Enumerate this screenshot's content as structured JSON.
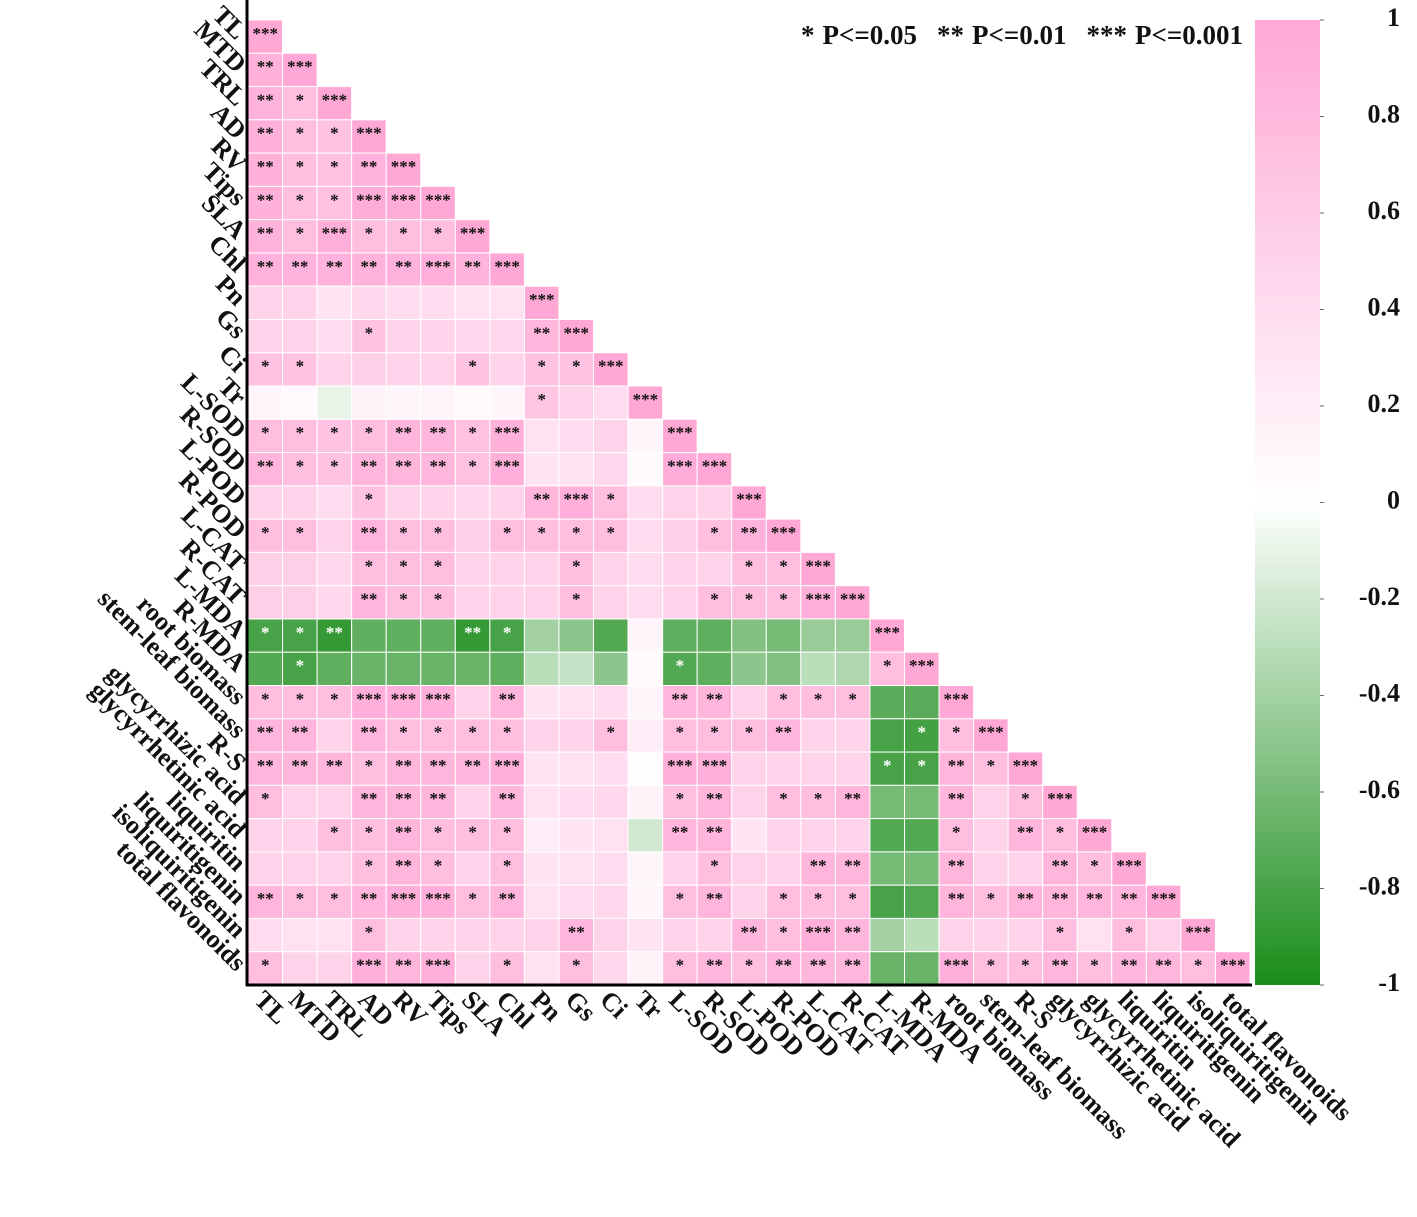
{
  "chart_data": {
    "type": "heatmap",
    "variables": [
      "TL",
      "MTD",
      "TRL",
      "AD",
      "RV",
      "Tips",
      "SLA",
      "Chl",
      "Pn",
      "Gs",
      "Ci",
      "Tr",
      "L-SOD",
      "R-SOD",
      "L-POD",
      "R-POD",
      "L-CAT",
      "R-CAT",
      "L-MDA",
      "R-MDA",
      "root biomass",
      "stem-leaf biomass",
      "R-S",
      "glycyrrhizic acid",
      "glycyrrhetinic acid",
      "liquiritin",
      "liquiritigenin",
      "isoliquiritigenin",
      "total flavonoids"
    ],
    "values": [
      [
        1
      ],
      [
        0.9,
        1
      ],
      [
        0.88,
        0.75,
        1
      ],
      [
        0.9,
        0.75,
        0.7,
        1
      ],
      [
        0.9,
        0.75,
        0.72,
        0.88,
        1
      ],
      [
        0.9,
        0.75,
        0.72,
        0.95,
        0.95,
        1
      ],
      [
        0.88,
        0.75,
        0.93,
        0.75,
        0.75,
        0.75,
        1
      ],
      [
        0.88,
        0.88,
        0.88,
        0.88,
        0.88,
        0.92,
        0.88,
        1
      ],
      [
        0.5,
        0.5,
        0.3,
        0.45,
        0.4,
        0.4,
        0.35,
        0.35,
        1
      ],
      [
        0.5,
        0.5,
        0.4,
        0.7,
        0.5,
        0.5,
        0.45,
        0.45,
        0.85,
        1
      ],
      [
        0.7,
        0.7,
        0.5,
        0.55,
        0.5,
        0.5,
        0.7,
        0.5,
        0.7,
        0.7,
        1
      ],
      [
        0.12,
        0.08,
        -0.1,
        0.15,
        0.1,
        0.12,
        0.05,
        0.1,
        0.65,
        0.5,
        0.4,
        1
      ],
      [
        0.75,
        0.75,
        0.7,
        0.75,
        0.85,
        0.85,
        0.72,
        0.9,
        0.35,
        0.4,
        0.5,
        0.1,
        1
      ],
      [
        0.85,
        0.75,
        0.7,
        0.85,
        0.85,
        0.85,
        0.72,
        0.92,
        0.3,
        0.35,
        0.45,
        0.05,
        0.95,
        1
      ],
      [
        0.5,
        0.5,
        0.4,
        0.7,
        0.5,
        0.5,
        0.45,
        0.5,
        0.85,
        0.92,
        0.75,
        0.4,
        0.5,
        0.5,
        1
      ],
      [
        0.75,
        0.75,
        0.5,
        0.85,
        0.75,
        0.75,
        0.55,
        0.75,
        0.75,
        0.75,
        0.75,
        0.4,
        0.55,
        0.75,
        0.88,
        1
      ],
      [
        0.55,
        0.55,
        0.45,
        0.75,
        0.75,
        0.75,
        0.5,
        0.5,
        0.5,
        0.75,
        0.5,
        0.4,
        0.5,
        0.5,
        0.75,
        0.75,
        1
      ],
      [
        0.55,
        0.55,
        0.45,
        0.85,
        0.75,
        0.75,
        0.5,
        0.5,
        0.5,
        0.75,
        0.5,
        0.4,
        0.5,
        0.75,
        0.75,
        0.75,
        0.92,
        1
      ],
      [
        -0.8,
        -0.8,
        -0.88,
        -0.7,
        -0.7,
        -0.7,
        -0.88,
        -0.8,
        -0.4,
        -0.5,
        -0.75,
        0.1,
        -0.7,
        -0.7,
        -0.55,
        -0.6,
        -0.45,
        -0.45,
        1
      ],
      [
        -0.75,
        -0.8,
        -0.7,
        -0.65,
        -0.65,
        -0.65,
        -0.65,
        -0.7,
        -0.3,
        -0.25,
        -0.5,
        0.05,
        -0.75,
        -0.7,
        -0.5,
        -0.55,
        -0.3,
        -0.35,
        0.75,
        1
      ],
      [
        0.75,
        0.75,
        0.75,
        0.92,
        0.92,
        0.92,
        0.5,
        0.85,
        0.3,
        0.35,
        0.4,
        0.1,
        0.85,
        0.85,
        0.5,
        0.75,
        0.75,
        0.75,
        -0.72,
        -0.72,
        1
      ],
      [
        0.85,
        0.85,
        0.5,
        0.85,
        0.75,
        0.75,
        0.75,
        0.75,
        0.5,
        0.5,
        0.75,
        0.2,
        0.75,
        0.75,
        0.75,
        0.85,
        0.5,
        0.5,
        -0.8,
        -0.82,
        0.75,
        1
      ],
      [
        0.85,
        0.85,
        0.85,
        0.75,
        0.85,
        0.85,
        0.85,
        0.92,
        0.3,
        0.35,
        0.4,
        0.02,
        0.92,
        0.92,
        0.5,
        0.5,
        0.5,
        0.5,
        -0.8,
        -0.8,
        0.85,
        0.75,
        1
      ],
      [
        0.75,
        0.5,
        0.5,
        0.85,
        0.85,
        0.85,
        0.5,
        0.85,
        0.35,
        0.4,
        0.45,
        0.15,
        0.75,
        0.85,
        0.5,
        0.75,
        0.75,
        0.85,
        -0.6,
        -0.6,
        0.85,
        0.5,
        0.75,
        1
      ],
      [
        0.5,
        0.5,
        0.75,
        0.75,
        0.85,
        0.75,
        0.75,
        0.75,
        0.2,
        0.3,
        0.35,
        -0.2,
        0.85,
        0.85,
        0.3,
        0.5,
        0.5,
        0.5,
        -0.75,
        -0.75,
        0.75,
        0.5,
        0.85,
        0.75,
        1
      ],
      [
        0.5,
        0.5,
        0.5,
        0.75,
        0.85,
        0.75,
        0.5,
        0.75,
        0.3,
        0.35,
        0.4,
        0.1,
        0.5,
        0.75,
        0.5,
        0.5,
        0.85,
        0.85,
        -0.6,
        -0.6,
        0.85,
        0.5,
        0.5,
        0.85,
        0.75,
        1
      ],
      [
        0.85,
        0.75,
        0.75,
        0.85,
        0.92,
        0.92,
        0.75,
        0.85,
        0.35,
        0.4,
        0.45,
        0.1,
        0.75,
        0.85,
        0.5,
        0.75,
        0.75,
        0.75,
        -0.8,
        -0.75,
        0.85,
        0.75,
        0.85,
        0.85,
        0.85,
        0.85,
        1
      ],
      [
        0.4,
        0.35,
        0.35,
        0.75,
        0.5,
        0.5,
        0.5,
        0.5,
        0.5,
        0.85,
        0.5,
        0.3,
        0.5,
        0.5,
        0.85,
        0.75,
        0.92,
        0.85,
        -0.4,
        -0.3,
        0.5,
        0.5,
        0.5,
        0.75,
        0.35,
        0.75,
        0.5,
        1
      ],
      [
        0.75,
        0.5,
        0.5,
        0.92,
        0.85,
        0.92,
        0.5,
        0.75,
        0.35,
        0.75,
        0.45,
        0.15,
        0.75,
        0.85,
        0.75,
        0.85,
        0.85,
        0.85,
        -0.65,
        -0.65,
        0.92,
        0.75,
        0.75,
        0.85,
        0.75,
        0.85,
        0.85,
        0.75,
        1
      ]
    ],
    "significance": [
      [
        "***"
      ],
      [
        "**",
        "***"
      ],
      [
        "**",
        "*",
        "***"
      ],
      [
        "**",
        "*",
        "*",
        "***"
      ],
      [
        "**",
        "*",
        "*",
        "**",
        "***"
      ],
      [
        "**",
        "*",
        "*",
        "***",
        "***",
        "***"
      ],
      [
        "**",
        "*",
        "***",
        "*",
        "*",
        "*",
        "***"
      ],
      [
        "**",
        "**",
        "**",
        "**",
        "**",
        "***",
        "**",
        "***"
      ],
      [
        null,
        null,
        null,
        null,
        null,
        null,
        null,
        null,
        "***"
      ],
      [
        null,
        null,
        null,
        "*",
        null,
        null,
        null,
        null,
        "**",
        "***"
      ],
      [
        "*",
        "*",
        null,
        null,
        null,
        null,
        "*",
        null,
        "*",
        "*",
        "***"
      ],
      [
        null,
        null,
        null,
        null,
        null,
        null,
        null,
        null,
        "*",
        null,
        null,
        "***"
      ],
      [
        "*",
        "*",
        "*",
        "*",
        "**",
        "**",
        "*",
        "***",
        null,
        null,
        null,
        null,
        "***"
      ],
      [
        "**",
        "*",
        "*",
        "**",
        "**",
        "**",
        "*",
        "***",
        null,
        null,
        null,
        null,
        "***",
        "***"
      ],
      [
        null,
        null,
        null,
        "*",
        null,
        null,
        null,
        null,
        "**",
        "***",
        "*",
        null,
        null,
        null,
        "***"
      ],
      [
        "*",
        "*",
        null,
        "**",
        "*",
        "*",
        null,
        "*",
        "*",
        "*",
        "*",
        null,
        null,
        "*",
        "**",
        "***"
      ],
      [
        null,
        null,
        null,
        "*",
        "*",
        "*",
        null,
        null,
        null,
        "*",
        null,
        null,
        null,
        null,
        "*",
        "*",
        "***"
      ],
      [
        null,
        null,
        null,
        "**",
        "*",
        "*",
        null,
        null,
        null,
        "*",
        null,
        null,
        null,
        "*",
        "*",
        "*",
        "***",
        "***"
      ],
      [
        "*",
        "*",
        "**",
        null,
        null,
        null,
        "**",
        "*",
        null,
        null,
        null,
        null,
        null,
        null,
        null,
        null,
        null,
        null,
        "***"
      ],
      [
        null,
        "*",
        null,
        null,
        null,
        null,
        null,
        null,
        null,
        null,
        null,
        null,
        "*",
        null,
        null,
        null,
        null,
        null,
        "*",
        "***"
      ],
      [
        "*",
        "*",
        "*",
        "***",
        "***",
        "***",
        null,
        "**",
        null,
        null,
        null,
        null,
        "**",
        "**",
        null,
        "*",
        "*",
        "*",
        null,
        null,
        "***"
      ],
      [
        "**",
        "**",
        null,
        "**",
        "*",
        "*",
        "*",
        "*",
        null,
        null,
        "*",
        null,
        "*",
        "*",
        "*",
        "**",
        null,
        null,
        null,
        "*",
        "*",
        "***"
      ],
      [
        "**",
        "**",
        "**",
        "*",
        "**",
        "**",
        "**",
        "***",
        null,
        null,
        null,
        null,
        "***",
        "***",
        null,
        null,
        null,
        null,
        "*",
        "*",
        "**",
        "*",
        "***"
      ],
      [
        "*",
        null,
        null,
        "**",
        "**",
        "**",
        null,
        "**",
        null,
        null,
        null,
        null,
        "*",
        "**",
        null,
        "*",
        "*",
        "**",
        null,
        null,
        "**",
        null,
        "*",
        "***"
      ],
      [
        null,
        null,
        "*",
        "*",
        "**",
        "*",
        "*",
        "*",
        null,
        null,
        null,
        null,
        "**",
        "**",
        null,
        null,
        null,
        null,
        null,
        null,
        "*",
        null,
        "**",
        "*",
        "***"
      ],
      [
        null,
        null,
        null,
        "*",
        "**",
        "*",
        null,
        "*",
        null,
        null,
        null,
        null,
        null,
        "*",
        null,
        null,
        "**",
        "**",
        null,
        null,
        "**",
        null,
        null,
        "**",
        "*",
        "***"
      ],
      [
        "**",
        "*",
        "*",
        "**",
        "***",
        "***",
        "*",
        "**",
        null,
        null,
        null,
        null,
        "*",
        "**",
        null,
        "*",
        "*",
        "*",
        null,
        null,
        "**",
        "*",
        "**",
        "**",
        "**",
        "**",
        "***"
      ],
      [
        null,
        null,
        null,
        "*",
        null,
        null,
        null,
        null,
        null,
        "**",
        null,
        null,
        null,
        null,
        "**",
        "*",
        "***",
        "**",
        null,
        null,
        null,
        null,
        null,
        "*",
        null,
        "*",
        null,
        "***"
      ],
      [
        "*",
        null,
        null,
        "***",
        "**",
        "***",
        null,
        "*",
        null,
        "*",
        null,
        null,
        "*",
        "**",
        "*",
        "**",
        "**",
        "**",
        null,
        null,
        "***",
        "*",
        "*",
        "**",
        "*",
        "**",
        "**",
        "*",
        "***"
      ]
    ],
    "significance_legend": [
      {
        "symbol": "*",
        "label": "P<=0.05"
      },
      {
        "symbol": "**",
        "label": "P<=0.01"
      },
      {
        "symbol": "***",
        "label": "P<=0.001"
      }
    ],
    "zlim": [
      -1,
      1
    ],
    "zticks": [
      1,
      0.8,
      0.6,
      0.4,
      0.2,
      0,
      -0.2,
      -0.4,
      -0.6,
      -0.8,
      -1
    ],
    "colors": {
      "low": "#1a8c1a",
      "mid": "#ffffff",
      "high": "#ffa8d6"
    }
  }
}
